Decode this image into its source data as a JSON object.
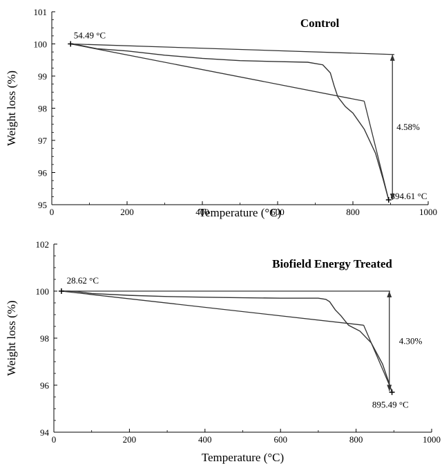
{
  "chart_data": [
    {
      "type": "line",
      "title": "Control",
      "xlabel": "Temperature (°C)",
      "ylabel": "Weight loss (%)",
      "xlim": [
        0,
        1000
      ],
      "ylim": [
        95,
        101
      ],
      "xticks": [
        0,
        200,
        400,
        600,
        800,
        1000
      ],
      "yticks": [
        95,
        96,
        97,
        98,
        99,
        100,
        101
      ],
      "grid": false,
      "series": [
        {
          "x": [
            50,
            70,
            90,
            120,
            200,
            300,
            400,
            500,
            600,
            680,
            720,
            740,
            750,
            760,
            770,
            780,
            800,
            830,
            860,
            880,
            895
          ],
          "y": [
            100.0,
            99.97,
            99.92,
            99.85,
            99.78,
            99.65,
            99.55,
            99.48,
            99.45,
            99.43,
            99.35,
            99.1,
            98.7,
            98.35,
            98.2,
            98.05,
            97.85,
            97.35,
            96.6,
            95.8,
            95.15
          ]
        }
      ],
      "annotations": [
        {
          "text": "54.49 °C",
          "x": 54.49,
          "y": 100.0
        },
        {
          "text": "894.61 °C",
          "x": 894.61,
          "y": 95.15
        },
        {
          "text": "4.58%",
          "x": 905,
          "y": 97.4,
          "span_y": [
            95.15,
            99.67
          ]
        }
      ],
      "helper_lines": [
        {
          "x": [
            50,
            910
          ],
          "y": [
            100.0,
            99.67
          ]
        },
        {
          "x": [
            50,
            830
          ],
          "y": [
            100.0,
            98.22
          ]
        },
        {
          "x": [
            830,
            895
          ],
          "y": [
            98.22,
            95.15
          ]
        }
      ]
    },
    {
      "type": "line",
      "title": "Biofield Energy Treated",
      "xlabel": "Temperature (°C)",
      "ylabel": "Weight loss (%)",
      "xlim": [
        0,
        1000
      ],
      "ylim": [
        94,
        102
      ],
      "xticks": [
        0,
        200,
        400,
        600,
        800,
        1000
      ],
      "yticks": [
        94,
        96,
        98,
        100,
        102
      ],
      "grid": false,
      "series": [
        {
          "x": [
            20,
            40,
            60,
            100,
            200,
            300,
            400,
            500,
            600,
            700,
            720,
            730,
            745,
            760,
            780,
            810,
            840,
            870,
            885,
            895
          ],
          "y": [
            100.0,
            100.0,
            99.98,
            99.9,
            99.82,
            99.77,
            99.74,
            99.72,
            99.7,
            99.7,
            99.65,
            99.55,
            99.2,
            98.95,
            98.55,
            98.3,
            97.8,
            96.9,
            96.2,
            95.7
          ]
        }
      ],
      "annotations": [
        {
          "text": "28.62 °C",
          "x": 28.62,
          "y": 100.0
        },
        {
          "text": "895.49 °C",
          "x": 895.49,
          "y": 95.75
        },
        {
          "text": "4.30%",
          "x": 905,
          "y": 98.0,
          "span_y": [
            95.75,
            100.0
          ]
        }
      ],
      "helper_lines": [
        {
          "x": [
            20,
            890
          ],
          "y": [
            100.0,
            100.0
          ]
        },
        {
          "x": [
            20,
            820
          ],
          "y": [
            100.0,
            98.55
          ]
        },
        {
          "x": [
            820,
            895
          ],
          "y": [
            98.55,
            95.75
          ]
        }
      ]
    }
  ]
}
